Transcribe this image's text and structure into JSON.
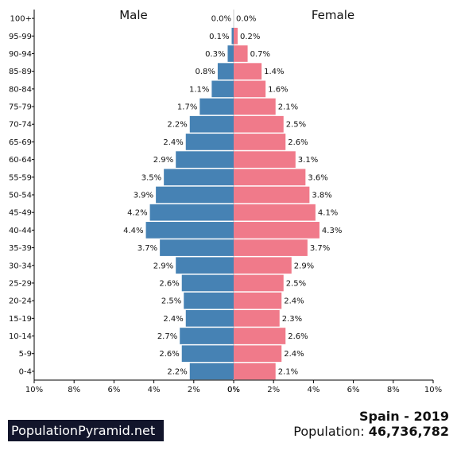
{
  "chart_data": {
    "type": "bar",
    "orientation": "horizontal-pyramid",
    "categories": [
      "0-4",
      "5-9",
      "10-14",
      "15-19",
      "20-24",
      "25-29",
      "30-34",
      "35-39",
      "40-44",
      "45-49",
      "50-54",
      "55-59",
      "60-64",
      "65-69",
      "70-74",
      "75-79",
      "80-84",
      "85-89",
      "90-94",
      "95-99",
      "100+"
    ],
    "series": [
      {
        "name": "Male",
        "color": "#4682b4",
        "values": [
          2.2,
          2.6,
          2.7,
          2.4,
          2.5,
          2.6,
          2.9,
          3.7,
          4.4,
          4.2,
          3.9,
          3.5,
          2.9,
          2.4,
          2.2,
          1.7,
          1.1,
          0.8,
          0.3,
          0.1,
          0.0
        ]
      },
      {
        "name": "Female",
        "color": "#f07a8a",
        "values": [
          2.1,
          2.4,
          2.6,
          2.3,
          2.4,
          2.5,
          2.9,
          3.7,
          4.3,
          4.1,
          3.8,
          3.6,
          3.1,
          2.6,
          2.5,
          2.1,
          1.6,
          1.4,
          0.7,
          0.2,
          0.0
        ]
      }
    ],
    "x_ticks": [
      "10%",
      "8%",
      "6%",
      "4%",
      "2%",
      "0%",
      "0%",
      "2%",
      "4%",
      "6%",
      "8%",
      "10%"
    ],
    "xlim": [
      -10,
      10
    ],
    "unit": "%",
    "grid": false
  },
  "brand": "PopulationPyramid.net",
  "country": "Spain - 2019",
  "population_label": "Population:",
  "population_value": "46,736,782"
}
